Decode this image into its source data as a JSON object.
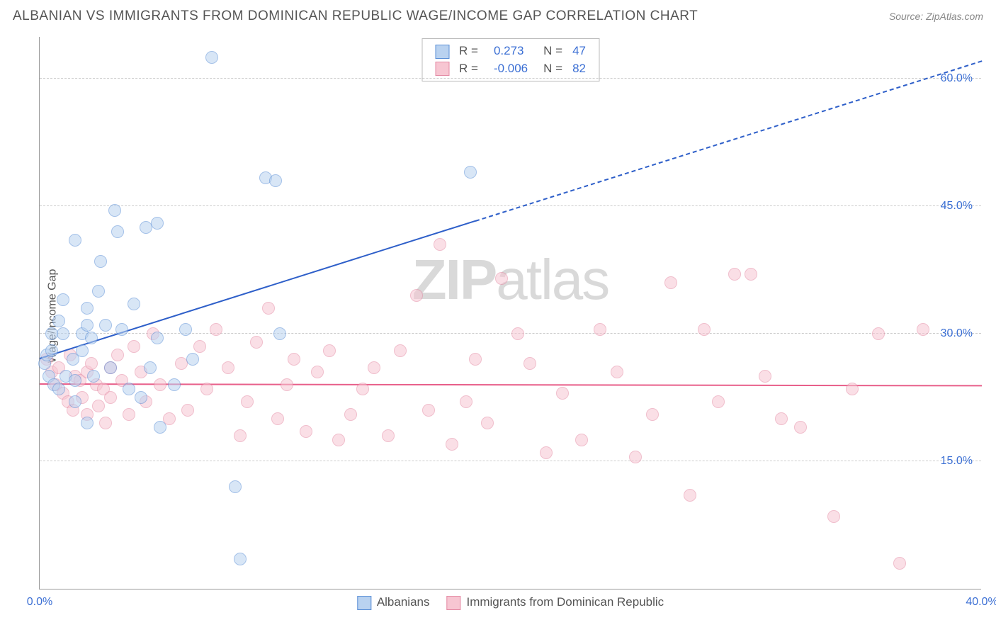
{
  "title": "ALBANIAN VS IMMIGRANTS FROM DOMINICAN REPUBLIC WAGE/INCOME GAP CORRELATION CHART",
  "source": "Source: ZipAtlas.com",
  "ylabel": "Wage/Income Gap",
  "watermark_bold": "ZIP",
  "watermark_light": "atlas",
  "chart": {
    "type": "scatter",
    "xlim": [
      0,
      40
    ],
    "ylim": [
      0,
      65
    ],
    "xticks": [
      {
        "v": 0,
        "label": "0.0%"
      },
      {
        "v": 40,
        "label": "40.0%"
      }
    ],
    "yticks": [
      {
        "v": 15,
        "label": "15.0%"
      },
      {
        "v": 30,
        "label": "30.0%"
      },
      {
        "v": 45,
        "label": "45.0%"
      },
      {
        "v": 60,
        "label": "60.0%"
      }
    ],
    "grid_color": "#cccccc",
    "axis_color": "#999999",
    "background": "#ffffff",
    "marker_radius": 9,
    "marker_border": 1.2,
    "series": [
      {
        "name": "Albanians",
        "fill": "#b9d2f0",
        "stroke": "#5a8fd6",
        "fill_opacity": 0.55,
        "R": "0.273",
        "N": "47",
        "trend": {
          "color": "#2e5fc9",
          "y_at_x0": 27.0,
          "y_at_x40": 62.0,
          "solid_until_x": 18.5
        },
        "points": [
          [
            0.2,
            26.5
          ],
          [
            0.3,
            27.5
          ],
          [
            0.4,
            25.0
          ],
          [
            0.5,
            30.0
          ],
          [
            0.5,
            28.0
          ],
          [
            0.6,
            24.0
          ],
          [
            0.8,
            31.5
          ],
          [
            0.8,
            23.5
          ],
          [
            1.0,
            30.0
          ],
          [
            1.0,
            34.0
          ],
          [
            1.1,
            25.0
          ],
          [
            1.4,
            27.0
          ],
          [
            1.5,
            24.5
          ],
          [
            1.5,
            41.0
          ],
          [
            1.5,
            22.0
          ],
          [
            1.8,
            28.0
          ],
          [
            1.8,
            30.0
          ],
          [
            2.0,
            33.0
          ],
          [
            2.0,
            31.0
          ],
          [
            2.0,
            19.5
          ],
          [
            2.2,
            29.5
          ],
          [
            2.3,
            25.0
          ],
          [
            2.5,
            35.0
          ],
          [
            2.6,
            38.5
          ],
          [
            2.8,
            31.0
          ],
          [
            3.0,
            26.0
          ],
          [
            3.2,
            44.5
          ],
          [
            3.3,
            42.0
          ],
          [
            3.5,
            30.5
          ],
          [
            3.8,
            23.5
          ],
          [
            4.0,
            33.5
          ],
          [
            4.3,
            22.5
          ],
          [
            4.5,
            42.5
          ],
          [
            4.7,
            26.0
          ],
          [
            5.0,
            43.0
          ],
          [
            5.0,
            29.5
          ],
          [
            5.1,
            19.0
          ],
          [
            5.7,
            24.0
          ],
          [
            6.2,
            30.5
          ],
          [
            6.5,
            27.0
          ],
          [
            7.3,
            62.5
          ],
          [
            8.3,
            12.0
          ],
          [
            8.5,
            3.5
          ],
          [
            9.6,
            48.3
          ],
          [
            10.0,
            48.0
          ],
          [
            10.2,
            30.0
          ],
          [
            18.3,
            49.0
          ]
        ]
      },
      {
        "name": "Immigrants from Dominican Republic",
        "fill": "#f7c6d2",
        "stroke": "#e48aa4",
        "fill_opacity": 0.55,
        "R": "-0.006",
        "N": "82",
        "trend": {
          "color": "#e85f8a",
          "y_at_x0": 24.0,
          "y_at_x40": 23.8,
          "solid_until_x": 40
        },
        "points": [
          [
            0.3,
            27.0
          ],
          [
            0.5,
            25.5
          ],
          [
            0.7,
            24.0
          ],
          [
            0.8,
            26.0
          ],
          [
            1.0,
            23.0
          ],
          [
            1.2,
            22.0
          ],
          [
            1.3,
            27.5
          ],
          [
            1.4,
            21.0
          ],
          [
            1.5,
            25.0
          ],
          [
            1.7,
            24.5
          ],
          [
            1.8,
            22.5
          ],
          [
            2.0,
            20.5
          ],
          [
            2.0,
            25.5
          ],
          [
            2.2,
            26.5
          ],
          [
            2.4,
            24.0
          ],
          [
            2.5,
            21.5
          ],
          [
            2.7,
            23.5
          ],
          [
            2.8,
            19.5
          ],
          [
            3.0,
            22.5
          ],
          [
            3.0,
            26.0
          ],
          [
            3.3,
            27.5
          ],
          [
            3.5,
            24.5
          ],
          [
            3.8,
            20.5
          ],
          [
            4.0,
            28.5
          ],
          [
            4.3,
            25.5
          ],
          [
            4.5,
            22.0
          ],
          [
            4.8,
            30.0
          ],
          [
            5.1,
            24.0
          ],
          [
            5.5,
            20.0
          ],
          [
            6.0,
            26.5
          ],
          [
            6.3,
            21.0
          ],
          [
            6.8,
            28.5
          ],
          [
            7.1,
            23.5
          ],
          [
            7.5,
            30.5
          ],
          [
            8.0,
            26.0
          ],
          [
            8.5,
            18.0
          ],
          [
            8.8,
            22.0
          ],
          [
            9.2,
            29.0
          ],
          [
            9.7,
            33.0
          ],
          [
            10.1,
            20.0
          ],
          [
            10.5,
            24.0
          ],
          [
            10.8,
            27.0
          ],
          [
            11.3,
            18.5
          ],
          [
            11.8,
            25.5
          ],
          [
            12.3,
            28.0
          ],
          [
            12.7,
            17.5
          ],
          [
            13.2,
            20.5
          ],
          [
            13.7,
            23.5
          ],
          [
            14.2,
            26.0
          ],
          [
            14.8,
            18.0
          ],
          [
            15.3,
            28.0
          ],
          [
            16.0,
            34.5
          ],
          [
            16.5,
            21.0
          ],
          [
            17.0,
            40.5
          ],
          [
            17.5,
            17.0
          ],
          [
            18.1,
            22.0
          ],
          [
            18.5,
            27.0
          ],
          [
            19.0,
            19.5
          ],
          [
            19.6,
            36.5
          ],
          [
            20.3,
            30.0
          ],
          [
            20.8,
            26.5
          ],
          [
            21.5,
            16.0
          ],
          [
            22.2,
            23.0
          ],
          [
            23.0,
            17.5
          ],
          [
            23.8,
            30.5
          ],
          [
            24.5,
            25.5
          ],
          [
            25.3,
            15.5
          ],
          [
            26.0,
            20.5
          ],
          [
            26.8,
            36.0
          ],
          [
            27.6,
            11.0
          ],
          [
            28.2,
            30.5
          ],
          [
            28.8,
            22.0
          ],
          [
            29.5,
            37.0
          ],
          [
            30.2,
            37.0
          ],
          [
            30.8,
            25.0
          ],
          [
            31.5,
            20.0
          ],
          [
            32.3,
            19.0
          ],
          [
            33.7,
            8.5
          ],
          [
            34.5,
            23.5
          ],
          [
            35.6,
            30.0
          ],
          [
            36.5,
            3.0
          ],
          [
            37.5,
            30.5
          ]
        ]
      }
    ]
  },
  "legend_bottom": [
    {
      "label": "Albanians",
      "fill": "#b9d2f0",
      "stroke": "#5a8fd6"
    },
    {
      "label": "Immigrants from Dominican Republic",
      "fill": "#f7c6d2",
      "stroke": "#e48aa4"
    }
  ]
}
